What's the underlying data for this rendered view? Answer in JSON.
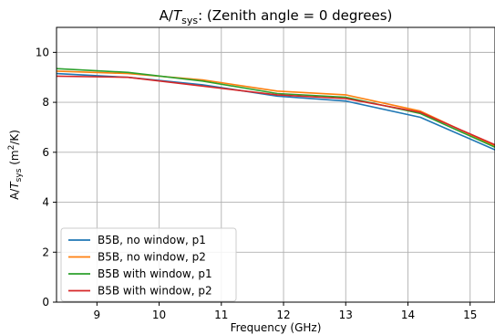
{
  "chart_data": {
    "type": "line",
    "title": "A/T_sys: (Zenith angle = 0 degrees)",
    "title_parts": {
      "a": "A/",
      "t": "T",
      "sub": "sys",
      "rest": ": (Zenith angle = 0 degrees)"
    },
    "xlabel": "Frequency (GHz)",
    "ylabel": "A/T_sys (m²/K)",
    "ylabel_parts": {
      "a": "A/",
      "t": "T",
      "sub": "sys",
      "rest": " (m",
      "sup": "2",
      "end": "/K)"
    },
    "xlim": [
      8.35,
      15.4
    ],
    "ylim": [
      0,
      11
    ],
    "x_ticks": [
      9,
      10,
      11,
      12,
      13,
      14,
      15
    ],
    "y_ticks": [
      0,
      2,
      4,
      6,
      8,
      10
    ],
    "grid": true,
    "legend_position": "lower-left",
    "series": [
      {
        "name": "B5B, no window, p1",
        "color": "#1f77b4",
        "x": [
          8.35,
          9.5,
          10.7,
          11.9,
          13.0,
          14.2,
          15.4
        ],
        "y": [
          9.15,
          9.0,
          8.7,
          8.25,
          8.05,
          7.4,
          6.1
        ]
      },
      {
        "name": "B5B, no window, p2",
        "color": "#ff7f0e",
        "x": [
          8.35,
          9.5,
          10.7,
          11.9,
          13.0,
          14.2,
          15.4
        ],
        "y": [
          9.25,
          9.15,
          8.9,
          8.45,
          8.3,
          7.65,
          6.25
        ]
      },
      {
        "name": "B5B with window, p1",
        "color": "#2ca02c",
        "x": [
          8.35,
          9.5,
          10.7,
          11.9,
          13.0,
          14.2,
          15.4
        ],
        "y": [
          9.35,
          9.2,
          8.85,
          8.35,
          8.2,
          7.55,
          6.2
        ]
      },
      {
        "name": "B5B with window, p2",
        "color": "#d62728",
        "x": [
          8.35,
          9.5,
          10.7,
          11.9,
          13.0,
          14.2,
          15.4
        ],
        "y": [
          9.05,
          9.0,
          8.65,
          8.3,
          8.15,
          7.6,
          6.3
        ]
      }
    ]
  }
}
